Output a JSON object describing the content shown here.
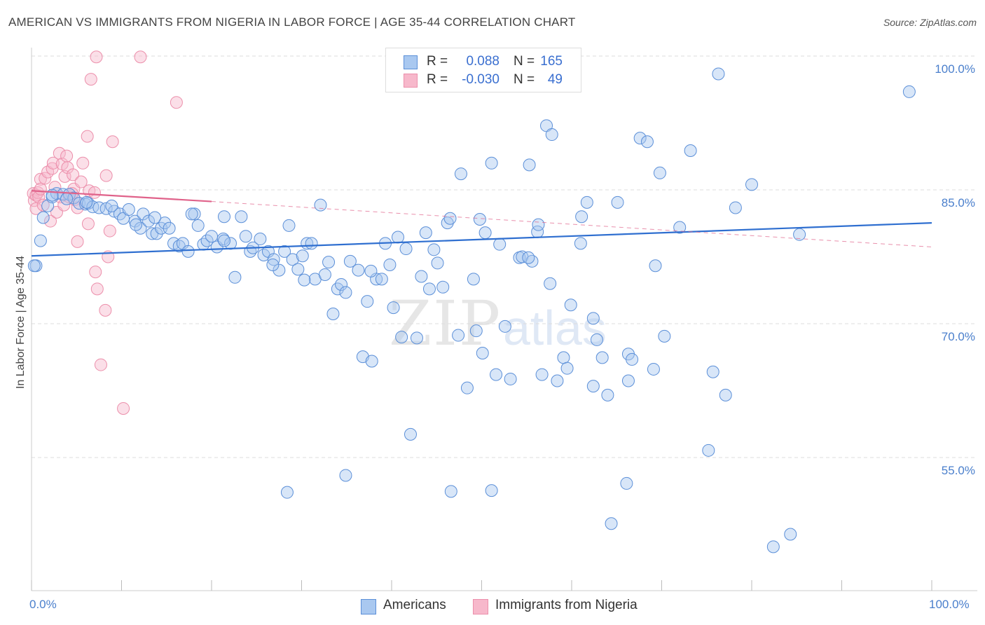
{
  "title": "AMERICAN VS IMMIGRANTS FROM NIGERIA IN LABOR FORCE | AGE 35-44 CORRELATION CHART",
  "source": "Source: ZipAtlas.com",
  "watermark": "ZIPatlas",
  "stats": {
    "americans": {
      "r_label": "R =",
      "r": "0.088",
      "n_label": "N =",
      "n": "165"
    },
    "nigeria": {
      "r_label": "R =",
      "r": "-0.030",
      "n_label": "N =",
      "n": "49"
    }
  },
  "legend": {
    "americans": "Americans",
    "nigeria": "Immigrants from Nigeria"
  },
  "colors": {
    "americans_fill": "#a9c8f0",
    "americans_stroke": "#5b8fd8",
    "americans_line": "#2f6fd0",
    "nigeria_fill": "#f7b8cb",
    "nigeria_stroke": "#ec8fab",
    "nigeria_line": "#e0628a",
    "grid": "#dddddd",
    "tick_text": "#4a7fcc"
  },
  "chart_data": {
    "type": "scatter",
    "title": "AMERICAN VS IMMIGRANTS FROM NIGERIA IN LABOR FORCE | AGE 35-44 CORRELATION CHART",
    "xlabel": "",
    "ylabel": "In Labor Force | Age 35-44",
    "x_tick_labels": [
      "0.0%",
      "100.0%"
    ],
    "y_tick_labels": [
      "100.0%",
      "85.0%",
      "70.0%",
      "55.0%"
    ],
    "y_ticks": [
      100,
      85,
      70,
      55
    ],
    "xlim": [
      0,
      100
    ],
    "ylim": [
      42,
      101
    ],
    "grid": true,
    "legend_position": "bottom",
    "series": [
      {
        "name": "Americans",
        "trend": {
          "x": [
            0,
            100
          ],
          "y": [
            77.6,
            81.3
          ]
        },
        "points": [
          [
            0.5,
            76.5
          ],
          [
            1,
            79.3
          ],
          [
            1.3,
            81.9
          ],
          [
            1.8,
            83.2
          ],
          [
            2.3,
            84.2
          ],
          [
            2.8,
            84.6
          ],
          [
            3.5,
            84.5
          ],
          [
            4.2,
            84.5
          ],
          [
            4.7,
            84.1
          ],
          [
            5.3,
            83.5
          ],
          [
            6,
            83.4
          ],
          [
            6.3,
            83.5
          ],
          [
            6.8,
            83.1
          ],
          [
            7.5,
            83
          ],
          [
            8.3,
            82.9
          ],
          [
            9.2,
            82.6
          ],
          [
            9.8,
            82.3
          ],
          [
            10.2,
            81.8
          ],
          [
            10.8,
            82.8
          ],
          [
            11.5,
            81.5
          ],
          [
            12.1,
            80.7
          ],
          [
            12.4,
            82.3
          ],
          [
            13,
            81.5
          ],
          [
            13.4,
            80.1
          ],
          [
            13.9,
            80.1
          ],
          [
            14.4,
            80.7
          ],
          [
            14.8,
            81.3
          ],
          [
            15.3,
            80.7
          ],
          [
            15.8,
            79
          ],
          [
            16.4,
            78.7
          ],
          [
            16.8,
            79
          ],
          [
            17.4,
            78.1
          ],
          [
            18.1,
            82.3
          ],
          [
            18.5,
            81
          ],
          [
            19.1,
            78.9
          ],
          [
            19.5,
            79.3
          ],
          [
            20,
            79.8
          ],
          [
            20.6,
            78.6
          ],
          [
            21.3,
            79.5
          ],
          [
            21.4,
            82
          ],
          [
            22.1,
            79
          ],
          [
            22.6,
            75.2
          ],
          [
            23.3,
            82
          ],
          [
            23.8,
            79.8
          ],
          [
            24.3,
            78.1
          ],
          [
            24.6,
            78.5
          ],
          [
            25.4,
            79.5
          ],
          [
            25.8,
            77.7
          ],
          [
            26.3,
            78.1
          ],
          [
            26.9,
            77.2
          ],
          [
            27.5,
            76
          ],
          [
            28.1,
            78.1
          ],
          [
            28.6,
            81
          ],
          [
            29,
            77.2
          ],
          [
            29.6,
            76.1
          ],
          [
            30.1,
            77.6
          ],
          [
            30.6,
            79
          ],
          [
            31.1,
            79
          ],
          [
            31.5,
            75
          ],
          [
            32.1,
            83.3
          ],
          [
            32.6,
            75.5
          ],
          [
            33,
            76.9
          ],
          [
            33.5,
            71.1
          ],
          [
            34,
            73.9
          ],
          [
            34.4,
            74.4
          ],
          [
            34.9,
            73.5
          ],
          [
            35.4,
            77
          ],
          [
            36.3,
            76
          ],
          [
            36.8,
            66.3
          ],
          [
            37.3,
            72.5
          ],
          [
            37.8,
            65.8
          ],
          [
            38.3,
            75
          ],
          [
            38.9,
            75
          ],
          [
            39.3,
            79
          ],
          [
            39.8,
            76.6
          ],
          [
            40.2,
            71.8
          ],
          [
            40.7,
            79.7
          ],
          [
            41.1,
            68.5
          ],
          [
            41.6,
            78.4
          ],
          [
            42.1,
            57.6
          ],
          [
            42.8,
            68.4
          ],
          [
            43.3,
            75.3
          ],
          [
            43.8,
            80.2
          ],
          [
            44.2,
            73.9
          ],
          [
            44.7,
            78.3
          ],
          [
            45.1,
            76.8
          ],
          [
            45.7,
            74.1
          ],
          [
            46.2,
            81.3
          ],
          [
            46.5,
            81.8
          ],
          [
            47.4,
            68.7
          ],
          [
            47.7,
            86.8
          ],
          [
            48.4,
            62.8
          ],
          [
            49.1,
            75
          ],
          [
            49.4,
            69.2
          ],
          [
            49.8,
            81.7
          ],
          [
            50.1,
            66.7
          ],
          [
            50.4,
            80.2
          ],
          [
            51.1,
            88
          ],
          [
            51.6,
            64.3
          ],
          [
            52,
            78.9
          ],
          [
            52.6,
            69.7
          ],
          [
            53.2,
            63.8
          ],
          [
            54.2,
            77.4
          ],
          [
            54.5,
            77.5
          ],
          [
            55.3,
            87.8
          ],
          [
            55.6,
            77
          ],
          [
            56.2,
            80.3
          ],
          [
            56.7,
            64.3
          ],
          [
            57.2,
            92.2
          ],
          [
            57.6,
            74.5
          ],
          [
            58.4,
            63.6
          ],
          [
            59.1,
            66.2
          ],
          [
            59.5,
            65
          ],
          [
            59.9,
            72.1
          ],
          [
            61,
            79
          ],
          [
            61.1,
            82
          ],
          [
            61.7,
            83.6
          ],
          [
            62.4,
            70.6
          ],
          [
            62.8,
            68.2
          ],
          [
            63.4,
            66.2
          ],
          [
            64,
            62
          ],
          [
            65.1,
            83.6
          ],
          [
            66.1,
            52.1
          ],
          [
            66.3,
            66.6
          ],
          [
            66.7,
            66
          ],
          [
            67.6,
            90.8
          ],
          [
            68.4,
            90.4
          ],
          [
            69.3,
            76.5
          ],
          [
            69.8,
            86.9
          ],
          [
            70.3,
            68.6
          ],
          [
            72,
            80.8
          ],
          [
            73.2,
            89.4
          ],
          [
            75.2,
            55.8
          ],
          [
            75.7,
            64.6
          ],
          [
            76.3,
            98
          ],
          [
            77.1,
            62
          ],
          [
            78.2,
            83
          ],
          [
            80,
            85.6
          ],
          [
            82.4,
            45
          ],
          [
            84.3,
            46.4
          ],
          [
            85.3,
            80
          ],
          [
            97.5,
            96
          ],
          [
            51.1,
            51.3
          ],
          [
            62.4,
            63
          ],
          [
            64.4,
            47.6
          ],
          [
            46.6,
            51.2
          ],
          [
            28.4,
            51.1
          ],
          [
            34.9,
            53
          ],
          [
            0.3,
            76.5
          ],
          [
            2.3,
            84.4
          ],
          [
            3.9,
            84
          ],
          [
            6.1,
            83.6
          ],
          [
            8.9,
            83.2
          ],
          [
            11.6,
            81.1
          ],
          [
            13.7,
            81.9
          ],
          [
            17.8,
            82.3
          ],
          [
            21.4,
            79.3
          ],
          [
            26.8,
            76.6
          ],
          [
            30.3,
            74.9
          ],
          [
            37.7,
            75.9
          ],
          [
            55.2,
            77.4
          ],
          [
            56.3,
            81.1
          ],
          [
            57.8,
            91.2
          ],
          [
            66.3,
            63.6
          ],
          [
            69.1,
            64.9
          ]
        ],
        "points_at_100": [
          64.1,
          66.6,
          68.7,
          69.2,
          71.5,
          72.4,
          74,
          75.7,
          76.8,
          77.8,
          80.1,
          82.1,
          83,
          83.8,
          85.6,
          88.3
        ]
      },
      {
        "name": "Immigrants from Nigeria",
        "trend": {
          "x": [
            0,
            20
          ],
          "y": [
            84.9,
            83.7
          ],
          "dashed_to": {
            "x": 100,
            "y": 78.6
          }
        },
        "points": [
          [
            0.2,
            84.6
          ],
          [
            0.3,
            83.8
          ],
          [
            0.5,
            84.4
          ],
          [
            0.5,
            82.9
          ],
          [
            0.7,
            84.7
          ],
          [
            0.8,
            84.2
          ],
          [
            1,
            86.2
          ],
          [
            1,
            85.1
          ],
          [
            1.3,
            83.3
          ],
          [
            1.5,
            86.3
          ],
          [
            1.8,
            87
          ],
          [
            2.1,
            81.5
          ],
          [
            2.3,
            87.4
          ],
          [
            2.4,
            88
          ],
          [
            2.6,
            85.3
          ],
          [
            2.8,
            82.5
          ],
          [
            3.1,
            89.1
          ],
          [
            3.2,
            84.2
          ],
          [
            3.4,
            87.9
          ],
          [
            3.6,
            83.3
          ],
          [
            3.7,
            86.5
          ],
          [
            3.9,
            88.8
          ],
          [
            4,
            87.5
          ],
          [
            4.2,
            84.2
          ],
          [
            4.6,
            86.7
          ],
          [
            4.7,
            85.1
          ],
          [
            4.8,
            83.9
          ],
          [
            5.1,
            79.2
          ],
          [
            5.5,
            85.9
          ],
          [
            5.7,
            88
          ],
          [
            6.2,
            91
          ],
          [
            6.3,
            81.2
          ],
          [
            6.4,
            84.9
          ],
          [
            6.6,
            97.4
          ],
          [
            7,
            84.7
          ],
          [
            7.1,
            75.8
          ],
          [
            7.3,
            73.9
          ],
          [
            7.7,
            65.4
          ],
          [
            8.2,
            71.5
          ],
          [
            8.3,
            86.6
          ],
          [
            8.5,
            77.5
          ],
          [
            8.7,
            80.4
          ],
          [
            9,
            90.4
          ],
          [
            10.2,
            60.5
          ],
          [
            12.1,
            99.9
          ],
          [
            16.1,
            94.8
          ],
          [
            7.2,
            99.9
          ],
          [
            4.5,
            84.6
          ],
          [
            5.1,
            83
          ]
        ]
      }
    ]
  }
}
